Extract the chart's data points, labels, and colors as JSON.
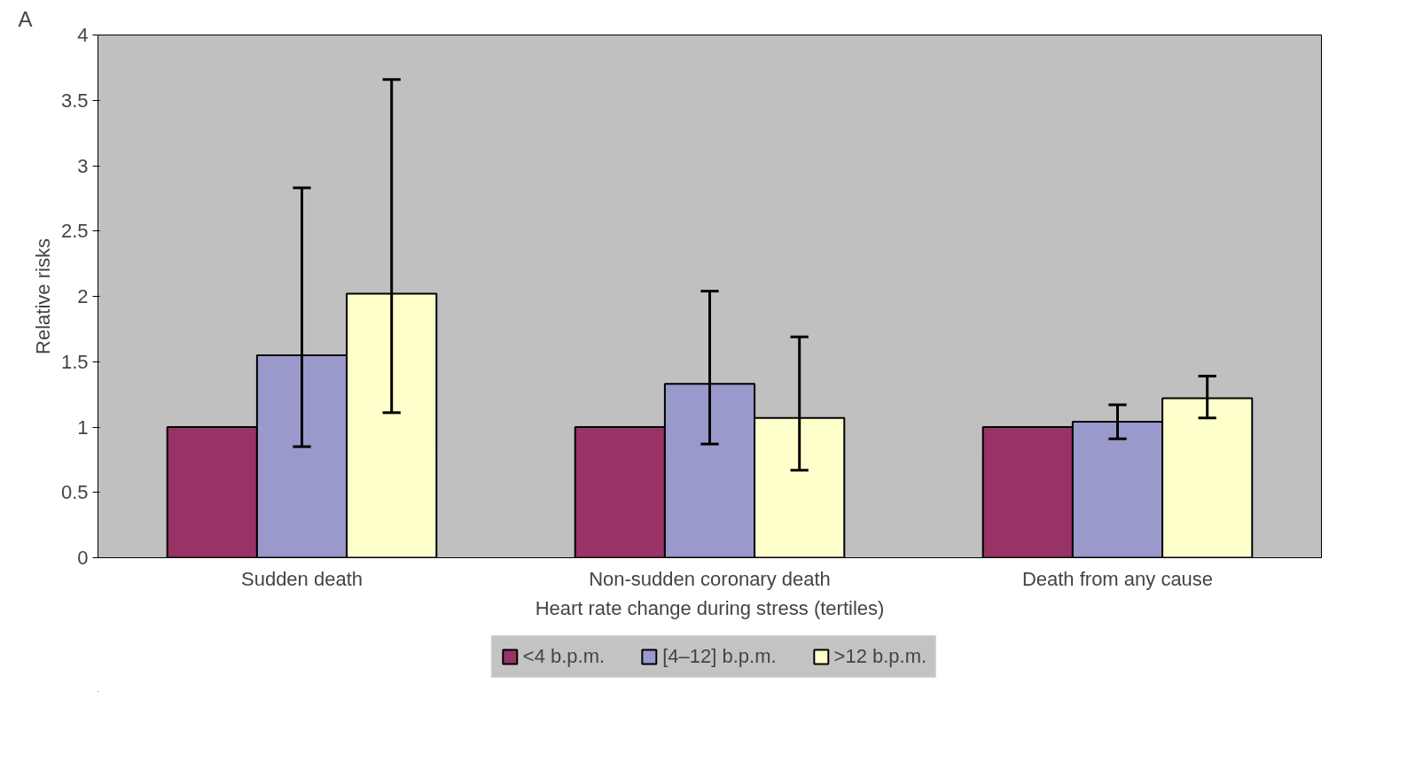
{
  "chart_data": {
    "type": "bar",
    "xlabel": "Heart rate change during stress (tertiles)",
    "ylabel": "Relative risks",
    "categories": [
      "Sudden death",
      "Non-sudden coronary death",
      "Death from any cause"
    ],
    "series": [
      {
        "name": "<4 b.p.m.",
        "color": "#993366",
        "values": [
          1,
          1,
          1
        ]
      },
      {
        "name": "[4–12] b.p.m.",
        "color": "#9999cc",
        "values": [
          1.55,
          1.33,
          1.04
        ],
        "errors": [
          [
            0.85,
            2.83
          ],
          [
            0.87,
            2.04
          ],
          [
            0.91,
            1.17
          ]
        ]
      },
      {
        "name": ">12 b.p.m.",
        "color": "#ffffcc",
        "values": [
          2.02,
          1.07,
          1.22
        ],
        "errors": [
          [
            1.11,
            3.66
          ],
          [
            0.67,
            1.69
          ],
          [
            1.07,
            1.39
          ]
        ]
      }
    ],
    "ylim": [
      0,
      4
    ],
    "yticks": [
      0,
      0.5,
      1,
      1.5,
      2,
      2.5,
      3,
      3.5,
      4
    ],
    "grid": false,
    "legend": "bottom",
    "annotations": [
      "A"
    ]
  }
}
